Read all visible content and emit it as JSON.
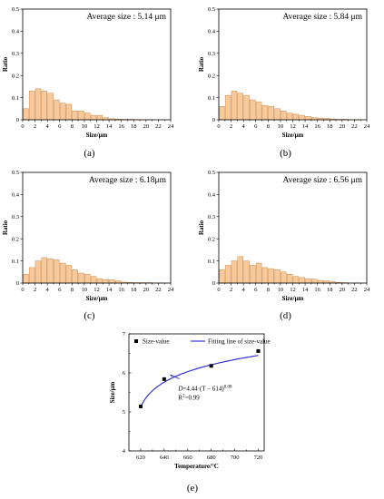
{
  "chart_data": [
    {
      "type": "bar",
      "panel_label": "(a)",
      "annotation": "Average size : 5.14 μm",
      "xlabel": "Size/μm",
      "ylabel": "Ratio",
      "xlim": [
        0,
        24
      ],
      "ylim": [
        0,
        0.5
      ],
      "x_ticks": [
        0,
        2,
        4,
        6,
        8,
        10,
        12,
        14,
        16,
        18,
        20,
        22,
        24
      ],
      "y_ticks": [
        0,
        0.1,
        0.2,
        0.3,
        0.4,
        0.5
      ],
      "y_tick_labels": [
        "0",
        "0.1",
        "0.2",
        "0.3",
        "0.4",
        "0.5"
      ],
      "x": [
        0,
        1,
        2,
        3,
        4,
        5,
        6,
        7,
        8,
        9,
        10,
        11,
        12,
        13,
        14,
        15,
        16,
        17,
        18,
        19,
        20,
        21,
        22
      ],
      "values": [
        0.05,
        0.13,
        0.14,
        0.13,
        0.12,
        0.09,
        0.075,
        0.07,
        0.04,
        0.04,
        0.03,
        0.02,
        0.02,
        0.01,
        0.005,
        0.003,
        0.002,
        0.002,
        0.001,
        0.001,
        0.001,
        0,
        0
      ]
    },
    {
      "type": "bar",
      "panel_label": "(b)",
      "annotation": "Average size : 5.84 μm",
      "xlabel": "Size/μm",
      "ylabel": "Ratio",
      "xlim": [
        0,
        24
      ],
      "ylim": [
        0,
        0.5
      ],
      "x_ticks": [
        0,
        2,
        4,
        6,
        8,
        10,
        12,
        14,
        16,
        18,
        20,
        22,
        24
      ],
      "y_ticks": [
        0,
        0.1,
        0.2,
        0.3,
        0.4,
        0.5
      ],
      "y_tick_labels": [
        "0",
        "0.1",
        "0.2",
        "0.3",
        "0.4",
        "0.5"
      ],
      "x": [
        0,
        1,
        2,
        3,
        4,
        5,
        6,
        7,
        8,
        9,
        10,
        11,
        12,
        13,
        14,
        15,
        16,
        17,
        18,
        19,
        20,
        21,
        22
      ],
      "values": [
        0.06,
        0.11,
        0.13,
        0.12,
        0.11,
        0.09,
        0.08,
        0.065,
        0.06,
        0.05,
        0.04,
        0.03,
        0.025,
        0.02,
        0.015,
        0.01,
        0.008,
        0.006,
        0.004,
        0.002,
        0.002,
        0.001,
        0.001
      ]
    },
    {
      "type": "bar",
      "panel_label": "(c)",
      "annotation": "Average size : 6.18μm",
      "xlabel": "Size/μm",
      "ylabel": "Ratio",
      "xlim": [
        0,
        24
      ],
      "ylim": [
        0,
        0.5
      ],
      "x_ticks": [
        0,
        2,
        4,
        6,
        8,
        10,
        12,
        14,
        16,
        18,
        20,
        22,
        24
      ],
      "y_ticks": [
        0,
        0.1,
        0.2,
        0.3,
        0.4,
        0.5
      ],
      "y_tick_labels": [
        "0",
        "0.1",
        "0.2",
        "0.3",
        "0.4",
        "0.5"
      ],
      "x": [
        0,
        1,
        2,
        3,
        4,
        5,
        6,
        7,
        8,
        9,
        10,
        11,
        12,
        13,
        14,
        15,
        16,
        17,
        18,
        19,
        20,
        21,
        22
      ],
      "values": [
        0.04,
        0.07,
        0.1,
        0.115,
        0.11,
        0.105,
        0.09,
        0.08,
        0.06,
        0.045,
        0.04,
        0.03,
        0.02,
        0.015,
        0.015,
        0.01,
        0.004,
        0.003,
        0.002,
        0.002,
        0.002,
        0.001,
        0.001
      ]
    },
    {
      "type": "bar",
      "panel_label": "(d)",
      "annotation": "Average size : 6.56 μm",
      "xlabel": "Size/μm",
      "ylabel": "Ratio",
      "xlim": [
        0,
        24
      ],
      "ylim": [
        0,
        0.5
      ],
      "x_ticks": [
        0,
        2,
        4,
        6,
        8,
        10,
        12,
        14,
        16,
        18,
        20,
        22,
        24
      ],
      "y_ticks": [
        0,
        0.1,
        0.2,
        0.3,
        0.4,
        0.5
      ],
      "y_tick_labels": [
        "0",
        "0.1",
        "0.2",
        "0.3",
        "0.4",
        "0.5"
      ],
      "x": [
        0,
        1,
        2,
        3,
        4,
        5,
        6,
        7,
        8,
        9,
        10,
        11,
        12,
        13,
        14,
        15,
        16,
        17,
        18,
        19,
        20,
        21,
        22
      ],
      "values": [
        0.06,
        0.08,
        0.1,
        0.12,
        0.1,
        0.08,
        0.09,
        0.07,
        0.065,
        0.06,
        0.05,
        0.04,
        0.03,
        0.025,
        0.02,
        0.018,
        0.012,
        0.01,
        0.006,
        0.003,
        0.002,
        0.001,
        0.001
      ]
    },
    {
      "type": "scatter",
      "panel_label": "(e)",
      "xlabel": "Temperature/°C",
      "ylabel": "Size/μm",
      "xlim": [
        610,
        725
      ],
      "ylim": [
        4,
        7
      ],
      "x_ticks": [
        620,
        640,
        660,
        680,
        700,
        720
      ],
      "y_ticks": [
        4,
        5,
        6,
        7
      ],
      "series": [
        {
          "name": "Size-value",
          "kind": "points",
          "x": [
            620,
            640,
            680,
            720
          ],
          "y": [
            5.14,
            5.84,
            6.18,
            6.56
          ]
        },
        {
          "name": "Fitting line of size-value",
          "kind": "line",
          "formula": {
            "a": 4.44,
            "t0": 614,
            "b": 0.08
          },
          "x_range": [
            620,
            720
          ]
        }
      ],
      "legend_position": "top",
      "equation_text": "D=4.44·(T − 614)0.08",
      "r2_text": "R2=0.99"
    }
  ]
}
